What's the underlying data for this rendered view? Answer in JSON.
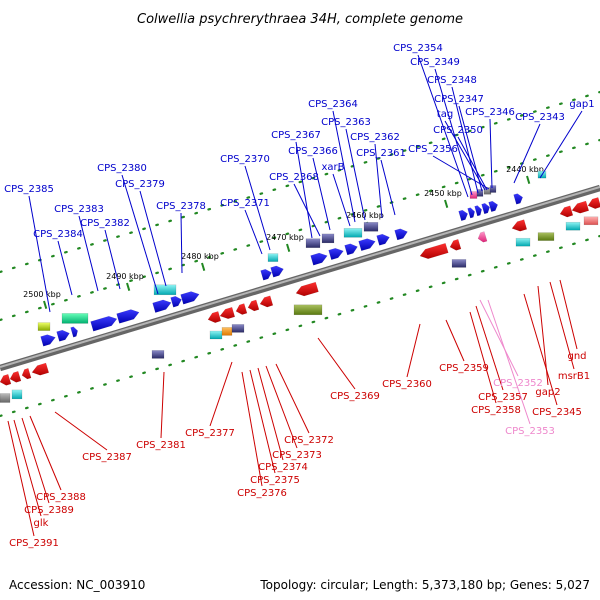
{
  "title": "Colwellia psychrerythraea 34H, complete genome",
  "footer": {
    "accession": "Accession: NC_003910",
    "summary": "Topology: circular; Length: 5,373,180 bp; Genes: 5,027"
  },
  "colors": {
    "forward": "#0000cc",
    "reverse": "#cc0000",
    "pseudo": "#ee88cc",
    "backbone": "#888888",
    "tick": "#228822"
  },
  "axis_ticks": [
    "2500 kbp",
    "2490 kbp",
    "2480 kbp",
    "2470 kbp",
    "2460 kbp",
    "2450 kbp",
    "2440 kbp"
  ],
  "forward_labels": [
    "CPS_2385",
    "CPS_2384",
    "CPS_2383",
    "CPS_2382",
    "CPS_2380",
    "CPS_2379",
    "CPS_2378",
    "CPS_2371",
    "CPS_2370",
    "CPS_2367",
    "CPS_2368",
    "CPS_2366",
    "CPS_2364",
    "CPS_2363",
    "xarB",
    "CPS_2362",
    "CPS_2361",
    "CPS_2354",
    "CPS_2349",
    "CPS_2348",
    "CPS_2347",
    "tag",
    "CPS_2350",
    "CPS_2356",
    "CPS_2346",
    "CPS_2343",
    "gap1"
  ],
  "reverse_labels": [
    "CPS_2387",
    "CPS_2388",
    "CPS_2389",
    "glk",
    "CPS_2391",
    "CPS_2381",
    "CPS_2377",
    "CPS_2372",
    "CPS_2373",
    "CPS_2374",
    "CPS_2375",
    "CPS_2376",
    "CPS_2369",
    "CPS_2360",
    "CPS_2359",
    "CPS_2357",
    "CPS_2358",
    "CPS_2345",
    "gap2",
    "msrB1",
    "gnd"
  ],
  "pseudo_labels": [
    "CPS_2352",
    "CPS_2353"
  ]
}
